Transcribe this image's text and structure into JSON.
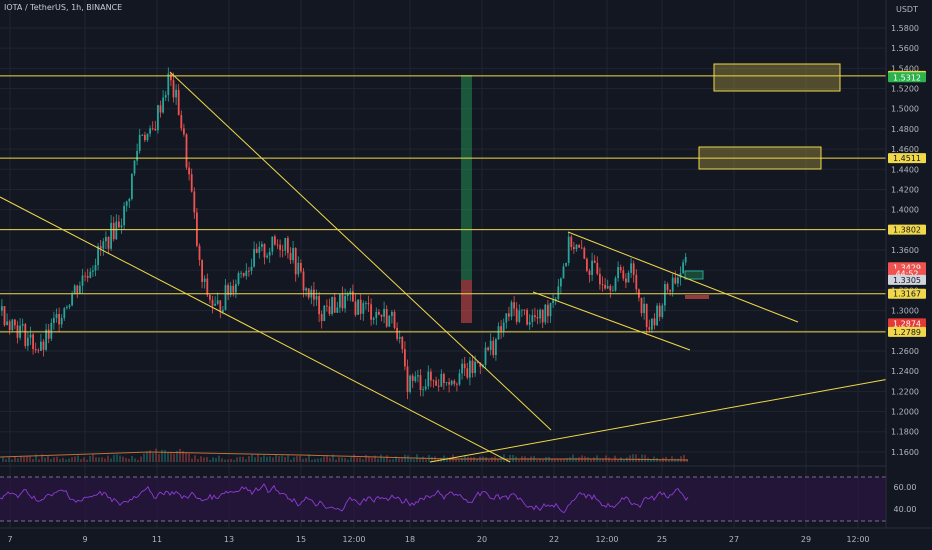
{
  "chart_title": "IOTA / TetherUS, 1h, BINANCE",
  "currency_label": "USDT",
  "colors": {
    "background": "#131722",
    "grid": "#1f2431",
    "up": "#26a69a",
    "down": "#ef5350",
    "yellow": "#f0d84a",
    "rsi": "#8e3bd8",
    "rsi_band": "#2a1640"
  },
  "chart_data": {
    "type": "candlestick",
    "price_axis": {
      "min": 1.15,
      "max": 1.61,
      "ticks": [
        "1.5800",
        "1.5600",
        "1.5400",
        "1.5200",
        "1.5000",
        "1.4800",
        "1.4600",
        "1.4400",
        "1.4200",
        "1.4000",
        "1.3800",
        "1.3600",
        "1.3400",
        "1.3200",
        "1.3000",
        "1.2800",
        "1.2600",
        "1.2400",
        "1.2200",
        "1.2000",
        "1.1800",
        "1.1600"
      ]
    },
    "time_axis": {
      "labels": [
        "7",
        "9",
        "11",
        "13",
        "15",
        "12:00",
        "18",
        "20",
        "22",
        "12:00",
        "25",
        "27",
        "29",
        "12:00"
      ]
    },
    "price_labels": [
      {
        "text": "1.5326",
        "value": 1.5326,
        "bg": "#f0d84a",
        "fg": "#131722"
      },
      {
        "text": "1.5312",
        "value": 1.5312,
        "bg": "#2bb24c",
        "fg": "#ffffff"
      },
      {
        "text": "1.4511",
        "value": 1.4511,
        "bg": "#f0d84a",
        "fg": "#131722"
      },
      {
        "text": "1.3802",
        "value": 1.3802,
        "bg": "#f0d84a",
        "fg": "#131722"
      },
      {
        "text": "1.3429",
        "value": 1.3429,
        "bg": "#ef5350",
        "fg": "#ffffff"
      },
      {
        "text": "44:52",
        "value": 1.3367,
        "bg": "#ef5350",
        "fg": "#ffffff"
      },
      {
        "text": "1.3305",
        "value": 1.3305,
        "bg": "#d1d4dc",
        "fg": "#131722"
      },
      {
        "text": "1.3167",
        "value": 1.3167,
        "bg": "#f0d84a",
        "fg": "#131722"
      },
      {
        "text": "1.2874",
        "value": 1.2874,
        "bg": "#e53935",
        "fg": "#ffffff"
      },
      {
        "text": "1.2789",
        "value": 1.2789,
        "bg": "#f0d84a",
        "fg": "#131722"
      }
    ],
    "horizontal_levels": [
      1.5326,
      1.4511,
      1.3802,
      1.3167,
      1.2789
    ],
    "rsi_axis": {
      "ticks": [
        "60.00",
        "40.00"
      ]
    }
  }
}
